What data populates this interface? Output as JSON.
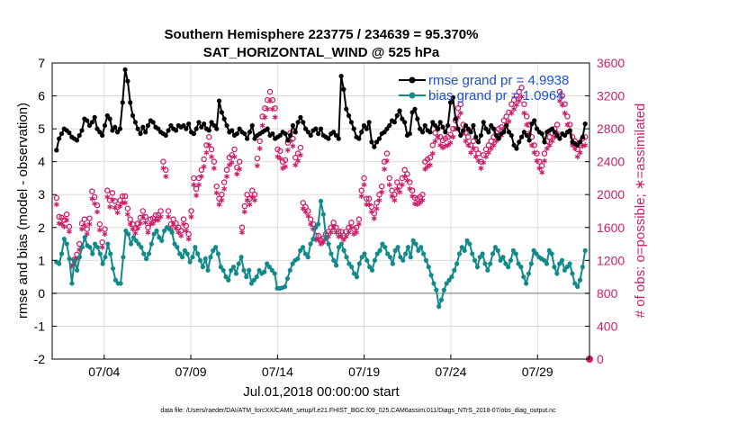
{
  "chart_data": {
    "type": "line",
    "title": "Southern Hemisphere 223775 / 234639 = 95.370%",
    "subtitle": "SAT_HORIZONTAL_WIND @ 525 hPa",
    "xlabel": "Jul.01,2018 00:00:00 start",
    "ylabel_left": "rmse and bias (model - observation)",
    "ylabel_right": "# of obs: o=possible; ∗=assimilated",
    "footer": "data file: /Users/raeder/DAI/ATM_forcXX/CAM6_setup/f.e21.FHIST_BGC.f09_025.CAM6assim.011/Diags_NTrS_2018-07/obs_diag_output.nc",
    "x_ticks": [
      "07/04",
      "07/09",
      "07/14",
      "07/19",
      "07/24",
      "07/29"
    ],
    "y_left_ticks": [
      "-2",
      "-1",
      "0",
      "1",
      "2",
      "3",
      "4",
      "5",
      "6",
      "7"
    ],
    "y_right_ticks": [
      "0",
      "400",
      "800",
      "1200",
      "1600",
      "2000",
      "2400",
      "2800",
      "3200",
      "3600"
    ],
    "ylim_left": [
      -2,
      7
    ],
    "ylim_right": [
      0,
      3600
    ],
    "xlim_days": [
      1,
      32
    ],
    "x_tick_days": [
      4,
      9,
      14,
      19,
      24,
      29
    ],
    "colors": {
      "rmse": "#000000",
      "bias": "#138a8a",
      "counts": "#cc1f6a",
      "legend_text": "#1a4fd6",
      "grid": "#dcdcdc",
      "zero_line": "#a0a0a0"
    },
    "series": [
      {
        "name": "rmse grand pr = 4.9938",
        "axis": "left",
        "values": [
          4.35,
          4.7,
          4.85,
          5.0,
          4.95,
          4.88,
          4.75,
          4.7,
          4.65,
          4.8,
          4.95,
          5.3,
          5.25,
          5.1,
          5.2,
          5.35,
          5.0,
          4.9,
          4.8,
          5.1,
          5.4,
          5.3,
          4.95,
          5.05,
          4.9,
          5.0,
          5.8,
          6.8,
          6.45,
          5.8,
          5.4,
          5.2,
          5.0,
          4.85,
          5.05,
          4.9,
          5.1,
          5.25,
          5.2,
          5.05,
          5.0,
          4.9,
          4.85,
          4.8,
          4.95,
          5.1,
          5.0,
          4.95,
          5.1,
          5.05,
          5.1,
          5.0,
          5.15,
          4.9,
          4.85,
          5.0,
          5.2,
          5.05,
          5.15,
          5.0,
          4.95,
          5.2,
          5.1,
          5.0,
          5.85,
          5.5,
          5.3,
          5.1,
          4.9,
          4.95,
          4.8,
          4.85,
          5.0,
          4.9,
          4.85,
          4.7,
          4.9,
          5.1,
          4.7,
          4.8,
          4.85,
          4.9,
          4.95,
          5.0,
          4.8,
          4.85,
          4.7,
          4.75,
          4.8,
          4.9,
          4.85,
          4.65,
          4.8,
          5.1,
          4.9,
          5.2,
          5.35,
          5.2,
          5.0,
          4.9,
          4.8,
          4.95,
          5.0,
          4.85,
          5.0,
          4.8,
          4.75,
          4.7,
          4.85,
          4.9,
          4.8,
          4.7,
          6.6,
          6.2,
          5.6,
          5.4,
          5.2,
          5.0,
          4.75,
          4.7,
          4.9,
          5.1,
          5.0,
          5.2,
          4.6,
          4.45,
          4.6,
          4.7,
          4.85,
          4.9,
          5.0,
          5.1,
          5.25,
          5.2,
          5.4,
          5.55,
          5.3,
          5.2,
          4.8,
          4.85,
          5.5,
          5.6,
          5.3,
          5.0,
          4.9,
          5.1,
          4.95,
          4.9,
          5.2,
          5.1,
          5.0,
          5.2,
          5.05,
          4.9,
          5.1,
          5.8,
          5.95,
          5.3,
          5.0,
          4.8,
          4.95,
          5.1,
          5.0,
          4.9,
          5.1,
          4.75,
          4.6,
          4.8,
          5.2,
          5.0,
          4.9,
          5.1,
          5.0,
          4.8,
          4.7,
          4.85,
          4.9,
          5.1,
          4.9,
          4.8,
          4.5,
          4.4,
          4.6,
          4.75,
          4.9,
          4.8,
          4.65,
          5.15,
          5.25,
          5.0,
          4.9,
          4.85,
          4.6,
          4.9,
          4.95,
          5.0,
          4.9,
          4.8,
          4.7,
          4.85,
          4.8,
          4.9,
          4.95,
          4.6,
          4.55,
          4.5,
          4.6,
          4.75,
          5.15
        ]
      },
      {
        "name": "bias grand pr = 1.0964",
        "axis": "left",
        "values": [
          0.95,
          0.9,
          1.2,
          1.65,
          1.5,
          1.05,
          0.3,
          1.0,
          0.7,
          1.1,
          1.4,
          1.7,
          1.45,
          1.4,
          1.2,
          1.5,
          1.4,
          1.2,
          0.9,
          1.1,
          1.5,
          1.2,
          0.75,
          0.4,
          0.3,
          0.3,
          1.1,
          1.9,
          1.8,
          1.5,
          1.7,
          1.6,
          1.5,
          1.4,
          1.2,
          1.05,
          1.2,
          1.5,
          1.8,
          1.9,
          1.7,
          1.6,
          1.9,
          2.0,
          1.95,
          1.85,
          1.5,
          1.4,
          1.2,
          1.1,
          1.3,
          1.2,
          0.95,
          1.1,
          1.4,
          1.2,
          1.0,
          0.8,
          1.05,
          0.7,
          1.1,
          1.3,
          1.4,
          1.2,
          0.8,
          0.7,
          0.5,
          0.4,
          0.7,
          0.8,
          0.6,
          0.9,
          1.1,
          0.7,
          0.5,
          0.7,
          0.3,
          0.4,
          0.5,
          0.7,
          0.6,
          0.65,
          0.9,
          0.8,
          0.7,
          0.6,
          0.15,
          0.15,
          0.17,
          0.2,
          0.45,
          0.7,
          0.9,
          1.0,
          1.05,
          1.3,
          1.4,
          1.2,
          1.1,
          1.5,
          1.65,
          2.0,
          2.1,
          2.8,
          2.4,
          1.7,
          1.5,
          1.2,
          1.0,
          0.85,
          1.4,
          1.5,
          1.3,
          1.1,
          0.9,
          0.8,
          0.6,
          0.5,
          0.9,
          1.1,
          1.2,
          1.0,
          0.8,
          0.7,
          1.0,
          1.2,
          1.3,
          1.5,
          1.4,
          1.2,
          1.1,
          0.9,
          1.3,
          1.4,
          1.1,
          1.0,
          1.2,
          1.4,
          1.1,
          1.6,
          1.5,
          1.3,
          1.4,
          1.2,
          1.0,
          0.8,
          0.55,
          0.3,
          0.1,
          -0.4,
          -0.2,
          0.1,
          0.3,
          0.4,
          0.5,
          0.7,
          0.9,
          1.2,
          1.4,
          1.3,
          1.6,
          1.5,
          1.2,
          1.0,
          0.8,
          1.1,
          1.2,
          0.9,
          0.7,
          0.9,
          1.2,
          1.4,
          1.3,
          1.0,
          1.1,
          0.9,
          0.8,
          1.0,
          1.3,
          1.2,
          0.9,
          0.8,
          0.5,
          0.3,
          0.6,
          0.9,
          1.3,
          1.2,
          1.1,
          1.05,
          1.0,
          0.9,
          1.3,
          1.2,
          0.8,
          0.6,
          0.9,
          1.0,
          0.7,
          0.8,
          0.9,
          0.6,
          0.3,
          0.2,
          0.4,
          0.8,
          1.3
        ]
      }
    ],
    "counts": {
      "axis": "right",
      "possible": [
        1960,
        1730,
        1720,
        1690,
        1760,
        1610,
        1180,
        1210,
        1270,
        1400,
        1650,
        1700,
        1580,
        1710,
        2040,
        1970,
        1870,
        1640,
        1420,
        1580,
        2050,
        1930,
        2020,
        1920,
        1850,
        1930,
        1980,
        1980,
        1830,
        1700,
        1640,
        1590,
        1650,
        1720,
        1800,
        1730,
        1600,
        1700,
        1710,
        1750,
        1750,
        1800,
        2400,
        2300,
        1800,
        1640,
        1700,
        1650,
        1600,
        1560,
        1700,
        1620,
        1520,
        1800,
        2200,
        2070,
        2200,
        2300,
        2430,
        2600,
        2700,
        2550,
        2400,
        2100,
        1950,
        2000,
        2150,
        2300,
        2450,
        2480,
        2550,
        2330,
        2400,
        1600,
        1860,
        2000,
        1950,
        2050,
        2000,
        2440,
        2650,
        2950,
        3050,
        3150,
        3250,
        3150,
        3050,
        2550,
        2530,
        2400,
        2420,
        2630,
        2750,
        2680,
        2450,
        2500,
        2570,
        1900,
        1850,
        1800,
        1700,
        1640,
        1500,
        1500,
        1450,
        1470,
        1520,
        1550,
        1600,
        1660,
        1600,
        1550,
        1550,
        1500,
        1550,
        1600,
        1660,
        1580,
        1600,
        1700,
        2050,
        2200,
        1950,
        1950,
        1850,
        1770,
        1900,
        2000,
        2100,
        2400,
        2500,
        2200,
        2050,
        2000,
        2150,
        2100,
        2200,
        2300,
        2250,
        2150,
        2050,
        1960,
        1950,
        1970,
        2000,
        2400,
        2430,
        2450,
        2600,
        2750,
        2800,
        2700,
        2660,
        2680,
        2700,
        2730,
        2800,
        2900,
        3050,
        3100,
        2850,
        2750,
        2700,
        2600,
        2650,
        2550,
        2500,
        2400,
        2480,
        2550,
        2600,
        2650,
        2700,
        2750,
        2800,
        2820,
        2900,
        2950,
        3000,
        3100,
        3150,
        3200,
        3250,
        3300,
        3100,
        2950,
        2850,
        2700,
        2600,
        2500,
        2400,
        2350,
        2500,
        2650,
        2700,
        2750,
        2800,
        2850,
        3250,
        3200,
        3100,
        2950,
        2850,
        2700,
        2650,
        2550,
        2600,
        2680,
        2700
      ],
      "assimilated": [
        1880,
        1650,
        1640,
        1610,
        1690,
        1550,
        1130,
        1160,
        1220,
        1330,
        1580,
        1630,
        1520,
        1640,
        1950,
        1890,
        1790,
        1570,
        1360,
        1520,
        1970,
        1850,
        1940,
        1840,
        1780,
        1860,
        1900,
        1900,
        1760,
        1640,
        1580,
        1530,
        1590,
        1650,
        1730,
        1660,
        1540,
        1640,
        1650,
        1690,
        1690,
        1730,
        2320,
        2220,
        1730,
        1580,
        1640,
        1590,
        1540,
        1500,
        1640,
        1560,
        1460,
        1730,
        2120,
        1990,
        2120,
        2220,
        2340,
        2510,
        2600,
        2460,
        2320,
        2020,
        1880,
        1930,
        2070,
        2220,
        2360,
        2390,
        2460,
        2250,
        2310,
        1540,
        1790,
        1930,
        1880,
        1970,
        1930,
        2350,
        2560,
        2840,
        2940,
        3040,
        3140,
        3040,
        2940,
        2460,
        2440,
        2320,
        2340,
        2540,
        2650,
        2590,
        2360,
        2410,
        2480,
        1830,
        1790,
        1740,
        1640,
        1580,
        1450,
        1450,
        1400,
        1420,
        1470,
        1490,
        1540,
        1600,
        1540,
        1490,
        1490,
        1450,
        1490,
        1540,
        1600,
        1520,
        1540,
        1640,
        1980,
        2120,
        1880,
        1880,
        1790,
        1710,
        1830,
        1930,
        2030,
        2310,
        2410,
        2120,
        1980,
        1930,
        2070,
        2030,
        2120,
        2220,
        2170,
        2070,
        1980,
        1890,
        1880,
        1900,
        1930,
        2310,
        2340,
        2360,
        2500,
        2650,
        2700,
        2600,
        2570,
        2590,
        2600,
        2630,
        2700,
        2800,
        2940,
        2990,
        2750,
        2650,
        2600,
        2510,
        2560,
        2460,
        2410,
        2320,
        2390,
        2460,
        2510,
        2560,
        2600,
        2650,
        2700,
        2720,
        2800,
        2850,
        2890,
        2990,
        3040,
        3090,
        3140,
        3190,
        2990,
        2850,
        2750,
        2600,
        2510,
        2410,
        2320,
        2270,
        2410,
        2560,
        2600,
        2650,
        2700,
        2750,
        3140,
        3090,
        2990,
        2850,
        2750,
        2600,
        2560,
        2460,
        2510,
        2590,
        2600
      ]
    }
  }
}
